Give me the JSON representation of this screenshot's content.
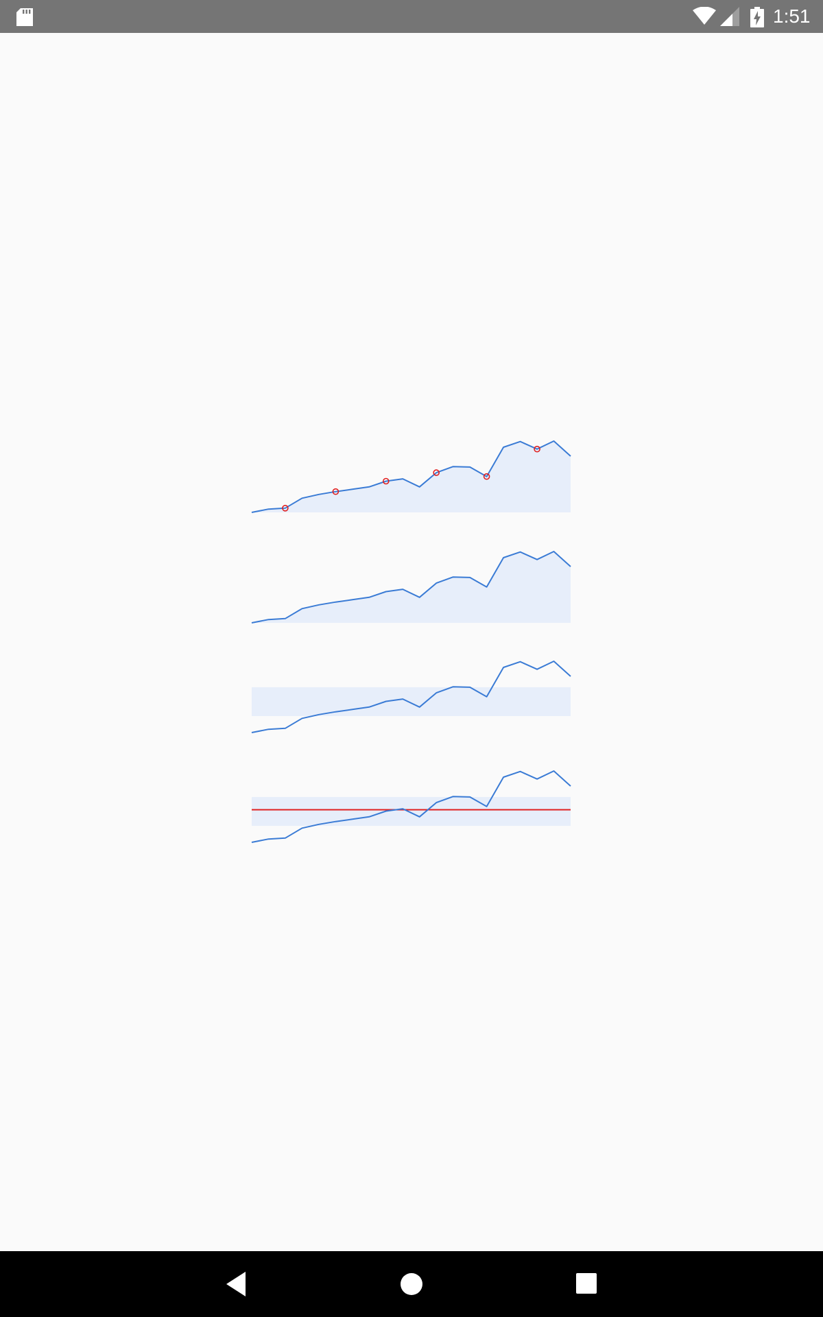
{
  "status_bar": {
    "time": "1:51",
    "icons": [
      "sd-card-icon",
      "wifi-icon",
      "signal-icon",
      "battery-charging-icon"
    ],
    "color": "#757575"
  },
  "navigation_bar": {
    "buttons": [
      "back-icon",
      "home-icon",
      "recents-icon"
    ],
    "color": "#000000"
  },
  "chart_data": {
    "type": "line",
    "values": [
      2,
      2.7,
      2.9,
      5,
      5.8,
      6.4,
      6.9,
      7.4,
      8.6,
      9.1,
      7.4,
      10.4,
      11.7,
      11.6,
      9.6,
      15.8,
      17,
      15.4,
      17.1,
      13.9
    ],
    "ylim": [
      2,
      17.1
    ],
    "series_color": "#3a7bd5",
    "fill_color": "#e7eefa",
    "accent_color": "#e02020",
    "sparklines": [
      {
        "variant": "area-with-markers",
        "markers": [
          2,
          5,
          8,
          11,
          14,
          17
        ]
      },
      {
        "variant": "area"
      },
      {
        "variant": "normal-range-band",
        "band": [
          5.5,
          11.6
        ]
      },
      {
        "variant": "normal-range-band-with-average-line",
        "band": [
          5.5,
          11.6
        ],
        "reference_line": 8.9
      }
    ]
  }
}
